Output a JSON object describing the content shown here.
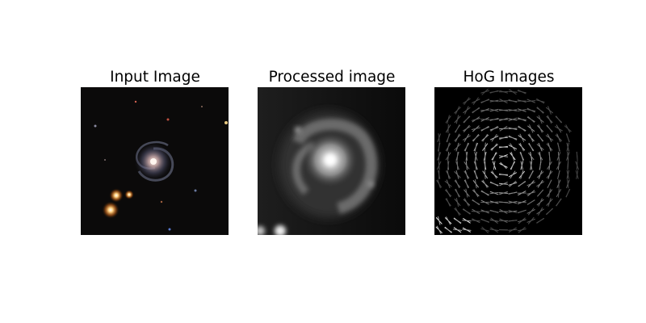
{
  "figure": {
    "panels": [
      {
        "title": "Input Image"
      },
      {
        "title": "Processed image"
      },
      {
        "title": "HoG Images"
      }
    ]
  },
  "colors": {
    "background": "#ffffff",
    "image_background": "#000000",
    "star_orange": "#ffb060"
  }
}
